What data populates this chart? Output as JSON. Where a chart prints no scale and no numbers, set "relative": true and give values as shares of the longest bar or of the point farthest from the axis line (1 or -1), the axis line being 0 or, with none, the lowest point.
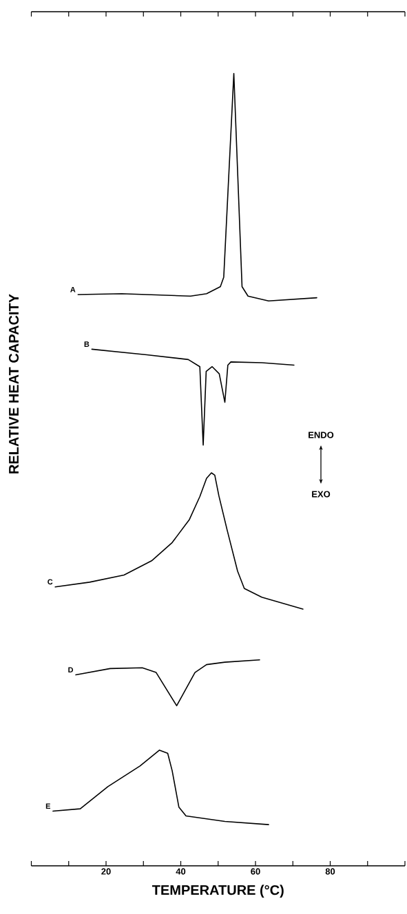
{
  "chart_data": {
    "type": "line",
    "relative": true,
    "xlabel": "TEMPERATURE   (°C)",
    "ylabel": "RELATIVE HEAT CAPACITY",
    "annotations": [
      "ENDO",
      "EXO"
    ],
    "xlim": [
      0,
      100
    ],
    "xticks": [
      {
        "value": 0,
        "label": null
      },
      {
        "value": 10,
        "label": null
      },
      20,
      {
        "value": 30,
        "label": null
      },
      40,
      {
        "value": 50,
        "label": null
      },
      60,
      {
        "value": 70,
        "label": null
      },
      80,
      {
        "value": 90,
        "label": null
      },
      {
        "value": 100,
        "label": null
      }
    ],
    "series": [
      {
        "name": "A",
        "color": "#000000",
        "x": [
          12.5,
          24.2,
          42.6,
          46.9,
          50.6,
          51.5,
          54.2,
          56.4,
          58.0,
          63.5,
          76.4
        ],
        "values": [
          0.721,
          0.722,
          0.719,
          0.722,
          0.731,
          0.743,
          1.0,
          0.731,
          0.719,
          0.713,
          0.717
        ]
      },
      {
        "name": "B",
        "color": "#000000",
        "x": [
          16.2,
          30.9,
          42.0,
          45.1,
          46.0,
          46.8,
          48.4,
          50.3,
          51.8,
          52.6,
          53.4,
          61.7,
          70.3
        ],
        "values": [
          0.652,
          0.645,
          0.639,
          0.63,
          0.531,
          0.624,
          0.63,
          0.621,
          0.585,
          0.632,
          0.636,
          0.635,
          0.632
        ]
      },
      {
        "name": "C",
        "color": "#000000",
        "x": [
          6.4,
          15.6,
          24.8,
          32.2,
          37.7,
          42.3,
          45.1,
          46.9,
          48.2,
          49.1,
          50.2,
          52.4,
          55.2,
          57.0,
          61.7,
          72.7
        ],
        "values": [
          0.352,
          0.358,
          0.367,
          0.385,
          0.408,
          0.437,
          0.466,
          0.489,
          0.496,
          0.493,
          0.467,
          0.424,
          0.372,
          0.35,
          0.339,
          0.324
        ]
      },
      {
        "name": "D",
        "color": "#000000",
        "x": [
          11.9,
          21.1,
          29.7,
          33.4,
          38.9,
          43.8,
          46.9,
          51.8,
          61.1
        ],
        "values": [
          0.241,
          0.249,
          0.25,
          0.244,
          0.202,
          0.244,
          0.254,
          0.257,
          0.26
        ]
      },
      {
        "name": "E",
        "color": "#000000",
        "x": [
          5.8,
          13.1,
          20.5,
          29.1,
          34.3,
          36.5,
          37.7,
          39.5,
          41.4,
          51.8,
          63.5
        ],
        "values": [
          0.069,
          0.072,
          0.1,
          0.126,
          0.146,
          0.142,
          0.12,
          0.074,
          0.063,
          0.056,
          0.052
        ]
      }
    ]
  }
}
